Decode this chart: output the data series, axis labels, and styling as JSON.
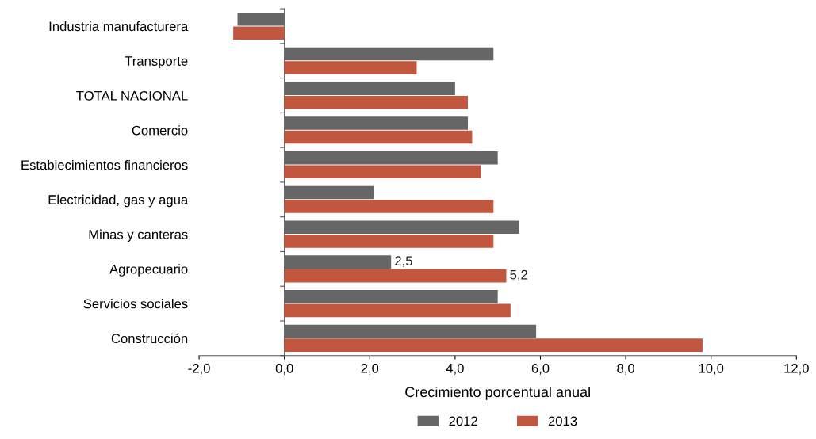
{
  "chart_data": {
    "type": "bar",
    "orientation": "horizontal",
    "categories": [
      "Industria manufacturera",
      "Transporte",
      "TOTAL NACIONAL",
      "Comercio",
      "Establecimientos financieros",
      "Electricidad, gas y agua",
      "Minas y canteras",
      "Agropecuario",
      "Servicios sociales",
      "Construcción"
    ],
    "series": [
      {
        "name": "2012",
        "color": "#666666",
        "values": [
          -1.1,
          4.9,
          4.0,
          4.3,
          5.0,
          2.1,
          5.5,
          2.5,
          5.0,
          5.9
        ],
        "value_labels": [
          null,
          null,
          null,
          null,
          null,
          null,
          null,
          "2,5",
          null,
          null
        ]
      },
      {
        "name": "2013",
        "color": "#c0573e",
        "values": [
          -1.2,
          3.1,
          4.3,
          4.4,
          4.6,
          4.9,
          4.9,
          5.2,
          5.3,
          9.8
        ],
        "value_labels": [
          null,
          null,
          null,
          null,
          null,
          null,
          null,
          "5,2",
          null,
          null
        ]
      }
    ],
    "xlabel": "Crecimiento porcentual anual",
    "xlim": [
      -2,
      12
    ],
    "xticks": [
      {
        "value": -2,
        "label": "-2,0"
      },
      {
        "value": 0,
        "label": "0,0"
      },
      {
        "value": 2,
        "label": "2,0"
      },
      {
        "value": 4,
        "label": "4,0"
      },
      {
        "value": 6,
        "label": "6,0"
      },
      {
        "value": 8,
        "label": "8,0"
      },
      {
        "value": 10,
        "label": "10,0"
      },
      {
        "value": 12,
        "label": "12,0"
      }
    ],
    "legend": "bottom"
  }
}
